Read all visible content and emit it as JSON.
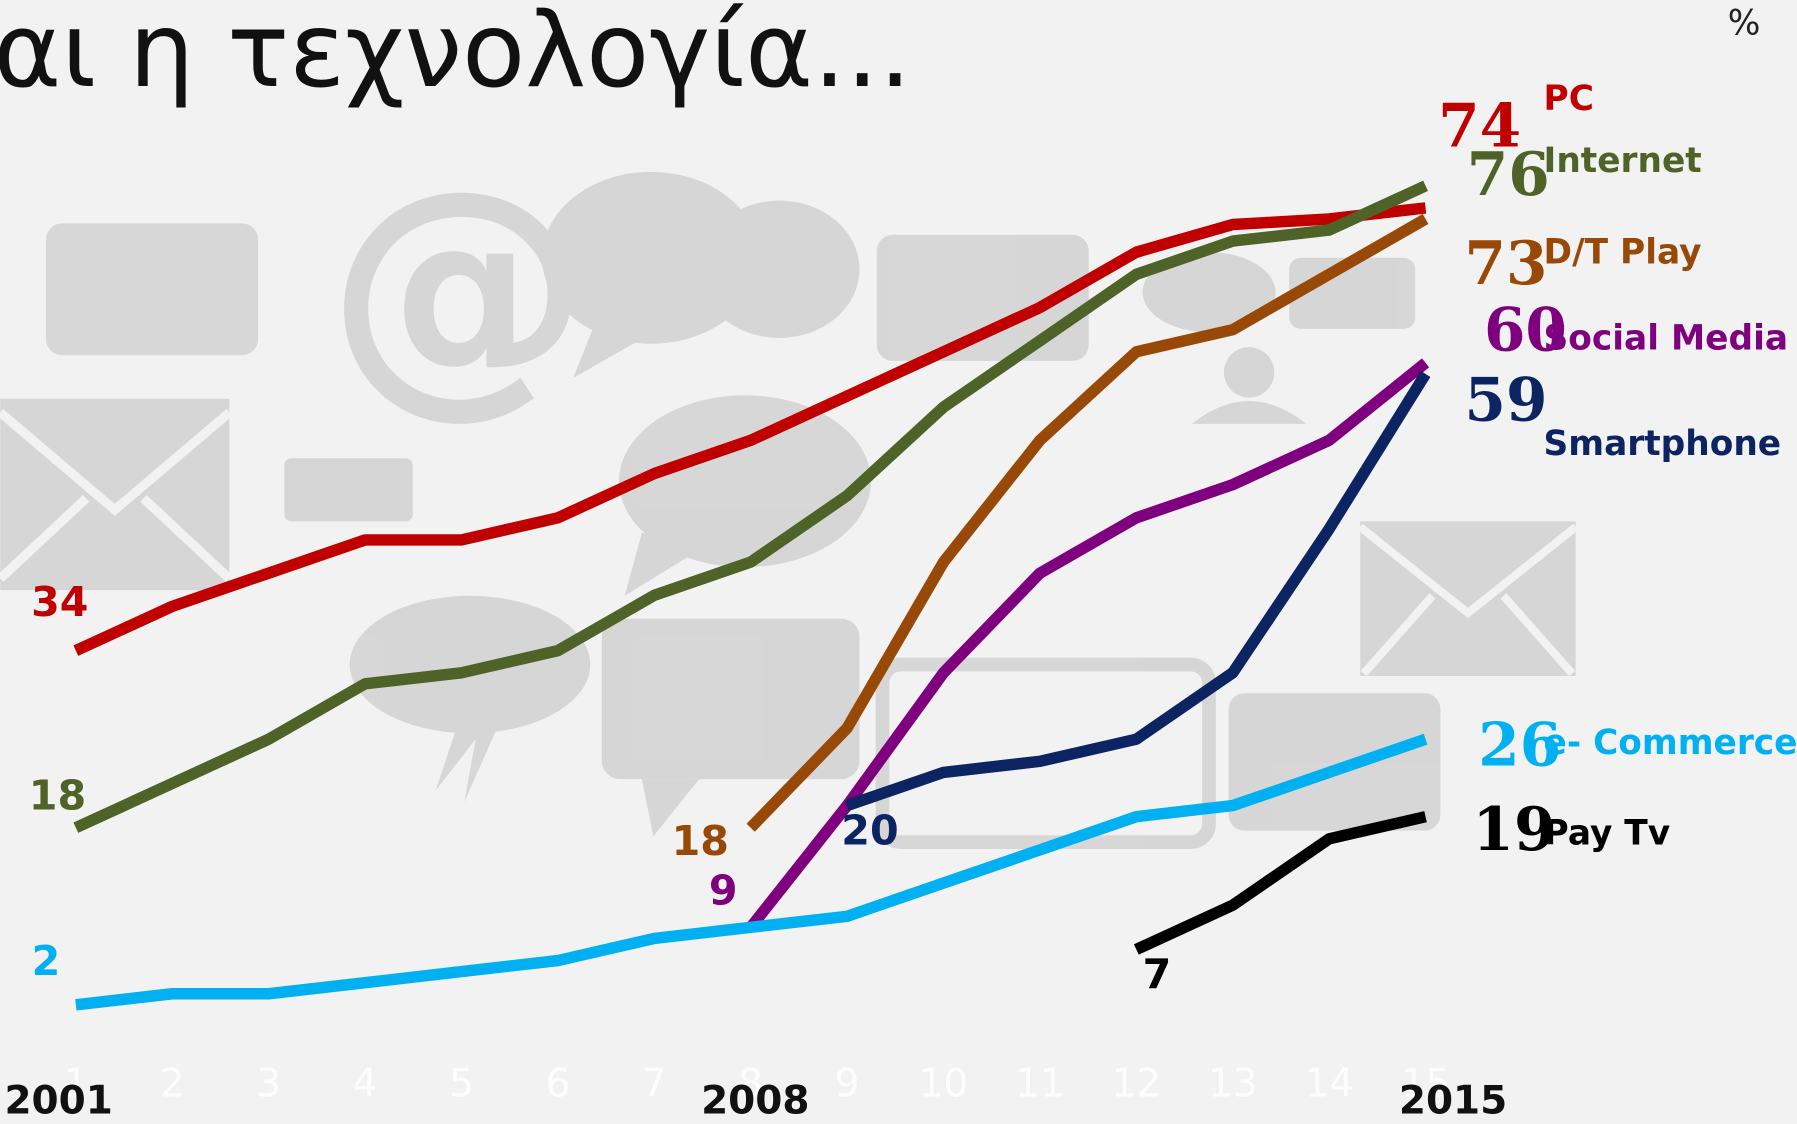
{
  "title": "αι η τεχνολογία...",
  "chart_data": {
    "type": "line",
    "unit_label": "%",
    "x": [
      1,
      2,
      3,
      4,
      5,
      6,
      7,
      8,
      9,
      10,
      11,
      12,
      13,
      14,
      15
    ],
    "xlim": [
      1,
      15
    ],
    "xticks": [
      1,
      2,
      3,
      4,
      5,
      6,
      7,
      8,
      9,
      10,
      11,
      12,
      13,
      14,
      15
    ],
    "year_ticks": [
      {
        "value": 1,
        "label": "2001"
      },
      {
        "value": 8,
        "label": "2008"
      },
      {
        "value": 15,
        "label": "2015"
      }
    ],
    "ylim": [
      0,
      80
    ],
    "series": [
      {
        "name": "PC",
        "color": "#c00000",
        "values": [
          34,
          38,
          41,
          44,
          44,
          46,
          50,
          53,
          57,
          61,
          65,
          70,
          72.5,
          73,
          74
        ]
      },
      {
        "name": "Internet",
        "color": "#4f6228",
        "values": [
          18,
          22,
          26,
          31,
          32,
          34,
          39,
          42,
          48,
          56,
          62,
          68,
          71,
          72,
          76
        ]
      },
      {
        "name": "D/T Play",
        "color": "#984807",
        "values": [
          null,
          null,
          null,
          null,
          null,
          null,
          null,
          18,
          27,
          42,
          53,
          61,
          63,
          68,
          73
        ]
      },
      {
        "name": "Social Media",
        "color": "#7f007f",
        "values": [
          null,
          null,
          null,
          null,
          null,
          null,
          null,
          9,
          20,
          32,
          41,
          46,
          49,
          53,
          60
        ]
      },
      {
        "name": "Smartphone",
        "color": "#0d2463",
        "values": [
          null,
          null,
          null,
          null,
          null,
          null,
          null,
          null,
          20,
          23,
          24,
          26,
          32,
          45,
          59
        ]
      },
      {
        "name": "e- Commerce",
        "color": "#00b0f0",
        "values": [
          2,
          3,
          3,
          4,
          5,
          6,
          8,
          9,
          10,
          13,
          16,
          19,
          20,
          23,
          26
        ]
      },
      {
        "name": "Pay Tv",
        "color": "#000000",
        "values": [
          null,
          null,
          null,
          null,
          null,
          null,
          null,
          null,
          null,
          null,
          null,
          7,
          11,
          17,
          19
        ]
      }
    ]
  }
}
